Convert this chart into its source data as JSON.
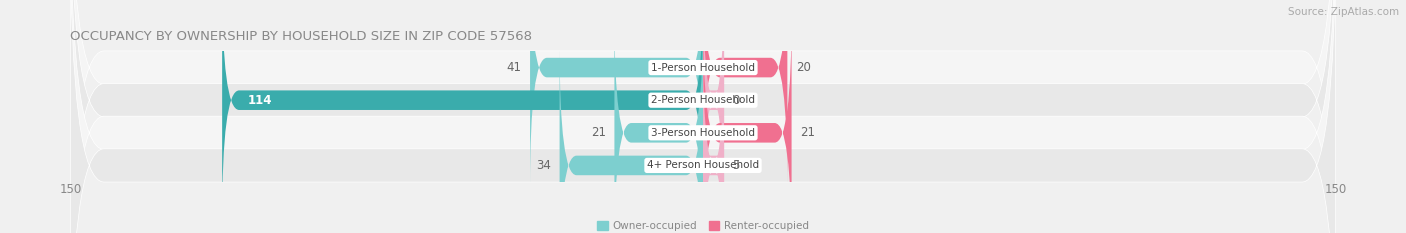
{
  "title": "OCCUPANCY BY OWNERSHIP BY HOUSEHOLD SIZE IN ZIP CODE 57568",
  "source": "Source: ZipAtlas.com",
  "categories": [
    "1-Person Household",
    "2-Person Household",
    "3-Person Household",
    "4+ Person Household"
  ],
  "owner_values": [
    41,
    114,
    21,
    34
  ],
  "renter_values": [
    20,
    0,
    21,
    5
  ],
  "owner_color_normal": "#7dcfcf",
  "owner_color_large": "#3aacac",
  "renter_color_normal": "#f07090",
  "renter_color_light": "#f0b0c8",
  "axis_max": 150,
  "bar_height": 0.6,
  "bg_color": "#f0f0f0",
  "row_colors": [
    "#f5f5f5",
    "#e8e8e8",
    "#f5f5f5",
    "#e8e8e8"
  ],
  "title_fontsize": 9.5,
  "source_fontsize": 7.5,
  "tick_fontsize": 8.5,
  "label_fontsize": 7.5,
  "value_fontsize": 8.5,
  "value_fontsize_inside": 8.5
}
